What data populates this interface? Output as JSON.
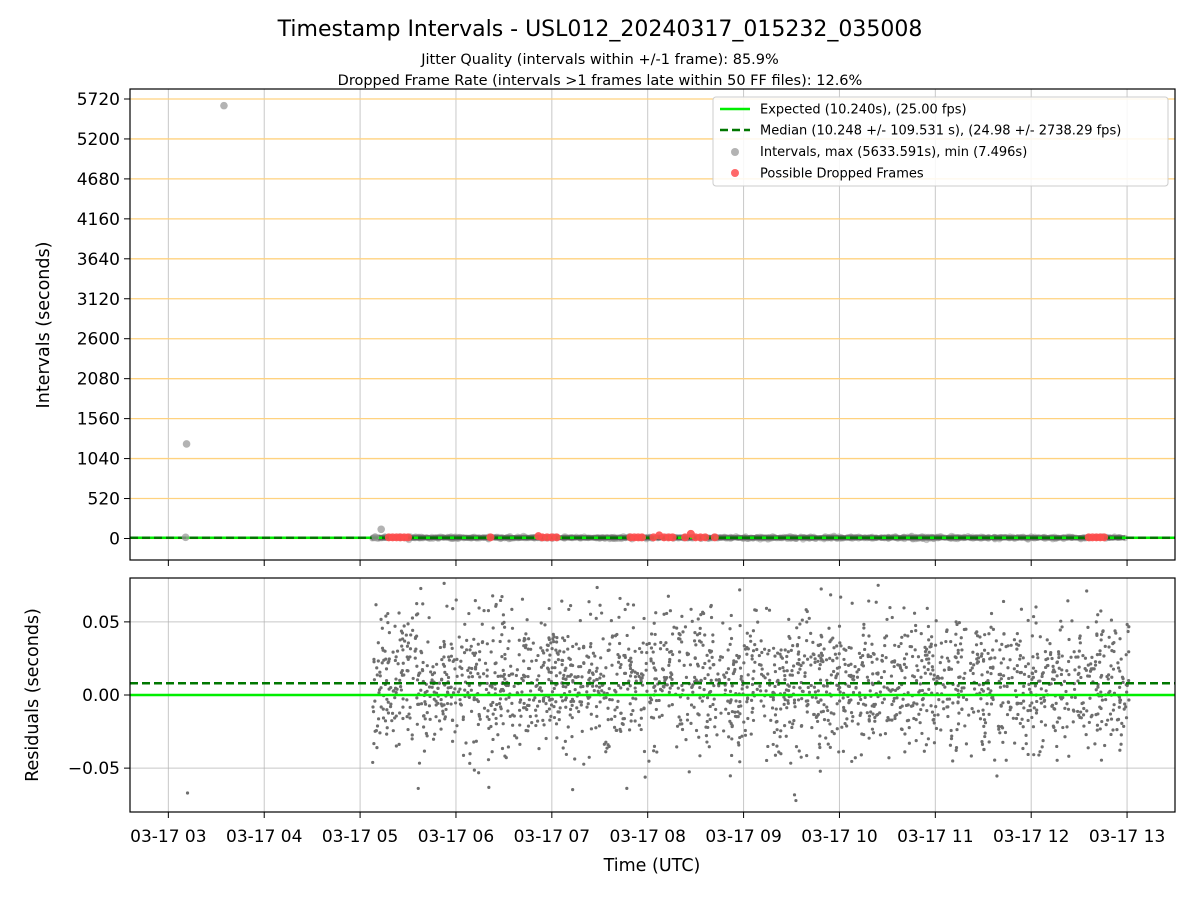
{
  "chart_data": [
    {
      "type": "scatter",
      "title": "Timestamp Intervals - USL012_20240317_015232_035008",
      "subtitle_1": "Jitter Quality (intervals within +/-1 frame): 85.9%",
      "subtitle_2": "Dropped Frame Rate (intervals >1 frames late within 50 FF files): 12.6%",
      "xlabel": "",
      "ylabel": "Intervals (seconds)",
      "ylim": [
        -280,
        5850
      ],
      "xlim": [
        2.6,
        13.5
      ],
      "yticks": [
        0,
        520,
        1040,
        1560,
        2080,
        2600,
        3120,
        3640,
        4160,
        4680,
        5200,
        5720
      ],
      "ytick_labels": [
        "0",
        "520",
        "1040",
        "1560",
        "2080",
        "2600",
        "3120",
        "3640",
        "4160",
        "4680",
        "5200",
        "5720"
      ],
      "ygrid_color": "#ffd27f",
      "legend_position": "upper right",
      "legend": [
        {
          "label": "Expected (10.240s), (25.00 fps)",
          "style": "solid-line",
          "color": "#00ee00"
        },
        {
          "label": "Median (10.248 +/- 109.531 s), (24.98 +/- 2738.29 fps)",
          "style": "dashed-line",
          "color": "#007700"
        },
        {
          "label": "Intervals, max (5633.591s), min (7.496s)",
          "style": "marker",
          "color": "#999999"
        },
        {
          "label": "Possible Dropped Frames",
          "style": "marker",
          "color": "#ff4d4d"
        }
      ],
      "expected_interval": 10.24,
      "median_interval": 10.248,
      "intervals_dense_range": [
        5.12,
        12.98
      ],
      "intervals_outliers": [
        {
          "x": 3.19,
          "y": 1230
        },
        {
          "x": 3.58,
          "y": 5633.591
        },
        {
          "x": 3.18,
          "y": 15
        },
        {
          "x": 5.16,
          "y": 15
        },
        {
          "x": 5.22,
          "y": 120
        }
      ],
      "dropped_frames": [
        {
          "x": 5.3,
          "y": 15
        },
        {
          "x": 5.34,
          "y": 15
        },
        {
          "x": 5.38,
          "y": 15
        },
        {
          "x": 5.42,
          "y": 15
        },
        {
          "x": 5.46,
          "y": 15
        },
        {
          "x": 5.5,
          "y": 15
        },
        {
          "x": 6.36,
          "y": 15
        },
        {
          "x": 6.86,
          "y": 30
        },
        {
          "x": 6.9,
          "y": 15
        },
        {
          "x": 6.95,
          "y": 15
        },
        {
          "x": 7.0,
          "y": 15
        },
        {
          "x": 7.05,
          "y": 15
        },
        {
          "x": 7.82,
          "y": 15
        },
        {
          "x": 7.86,
          "y": 15
        },
        {
          "x": 7.9,
          "y": 15
        },
        {
          "x": 7.94,
          "y": 15
        },
        {
          "x": 8.06,
          "y": 15
        },
        {
          "x": 8.12,
          "y": 40
        },
        {
          "x": 8.17,
          "y": 15
        },
        {
          "x": 8.22,
          "y": 15
        },
        {
          "x": 8.26,
          "y": 15
        },
        {
          "x": 8.39,
          "y": 15
        },
        {
          "x": 8.45,
          "y": 60
        },
        {
          "x": 8.5,
          "y": 15
        },
        {
          "x": 8.55,
          "y": 15
        },
        {
          "x": 8.6,
          "y": 15
        },
        {
          "x": 8.7,
          "y": 15
        },
        {
          "x": 12.6,
          "y": 15
        },
        {
          "x": 12.64,
          "y": 15
        },
        {
          "x": 12.68,
          "y": 15
        },
        {
          "x": 12.72,
          "y": 15
        },
        {
          "x": 12.76,
          "y": 15
        }
      ]
    },
    {
      "type": "scatter",
      "ylabel": "Residuals (seconds)",
      "xlabel": "Time (UTC)",
      "ylim": [
        -0.08,
        0.08
      ],
      "xlim": [
        2.6,
        13.5
      ],
      "yticks": [
        -0.05,
        0.0,
        0.05
      ],
      "ytick_labels": [
        "−0.05",
        "0.00",
        "0.05"
      ],
      "xticks": [
        3,
        4,
        5,
        6,
        7,
        8,
        9,
        10,
        11,
        12,
        13
      ],
      "xtick_labels": [
        "03-17 03",
        "03-17 04",
        "03-17 05",
        "03-17 06",
        "03-17 07",
        "03-17 08",
        "03-17 09",
        "03-17 10",
        "03-17 11",
        "03-17 12",
        "03-17 13"
      ],
      "expected_residual": 0.0,
      "median_residual": 0.008,
      "residual_dense_range": [
        5.12,
        13.02
      ],
      "residual_point_count": 2200,
      "residual_spread": [
        -0.077,
        0.077
      ],
      "residual_outliers": [
        {
          "x": 3.2,
          "y": -0.067
        }
      ]
    }
  ]
}
